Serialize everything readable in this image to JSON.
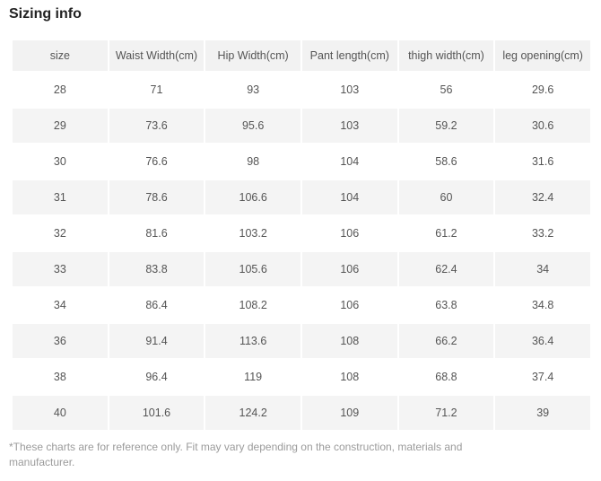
{
  "page": {
    "title": "Sizing info",
    "footnote": "*These charts are for reference only. Fit may vary depending on the construction, materials and manufacturer."
  },
  "chart_data": {
    "type": "table",
    "title": "Sizing info",
    "columns": [
      "size",
      "Waist Width(cm)",
      "Hip Width(cm)",
      "Pant length(cm)",
      "thigh width(cm)",
      "leg opening(cm)"
    ],
    "rows": [
      [
        "28",
        "71",
        "93",
        "103",
        "56",
        "29.6"
      ],
      [
        "29",
        "73.6",
        "95.6",
        "103",
        "59.2",
        "30.6"
      ],
      [
        "30",
        "76.6",
        "98",
        "104",
        "58.6",
        "31.6"
      ],
      [
        "31",
        "78.6",
        "106.6",
        "104",
        "60",
        "32.4"
      ],
      [
        "32",
        "81.6",
        "103.2",
        "106",
        "61.2",
        "33.2"
      ],
      [
        "33",
        "83.8",
        "105.6",
        "106",
        "62.4",
        "34"
      ],
      [
        "34",
        "86.4",
        "108.2",
        "106",
        "63.8",
        "34.8"
      ],
      [
        "36",
        "91.4",
        "113.6",
        "108",
        "66.2",
        "36.4"
      ],
      [
        "38",
        "96.4",
        "119",
        "108",
        "68.8",
        "37.4"
      ],
      [
        "40",
        "101.6",
        "124.2",
        "109",
        "71.2",
        "39"
      ]
    ],
    "layout": {
      "stripe_style": "alternating-rows",
      "striped_row_indices": [
        1,
        3,
        5,
        7,
        9
      ],
      "cell_alignment": "center"
    }
  },
  "colors": {
    "header_bg": "#f2f2f2",
    "row_stripe_bg": "#f4f4f4",
    "cell_text": "#555555",
    "title_text": "#222222",
    "footnote_text": "#9b9b9b",
    "background": "#ffffff"
  }
}
